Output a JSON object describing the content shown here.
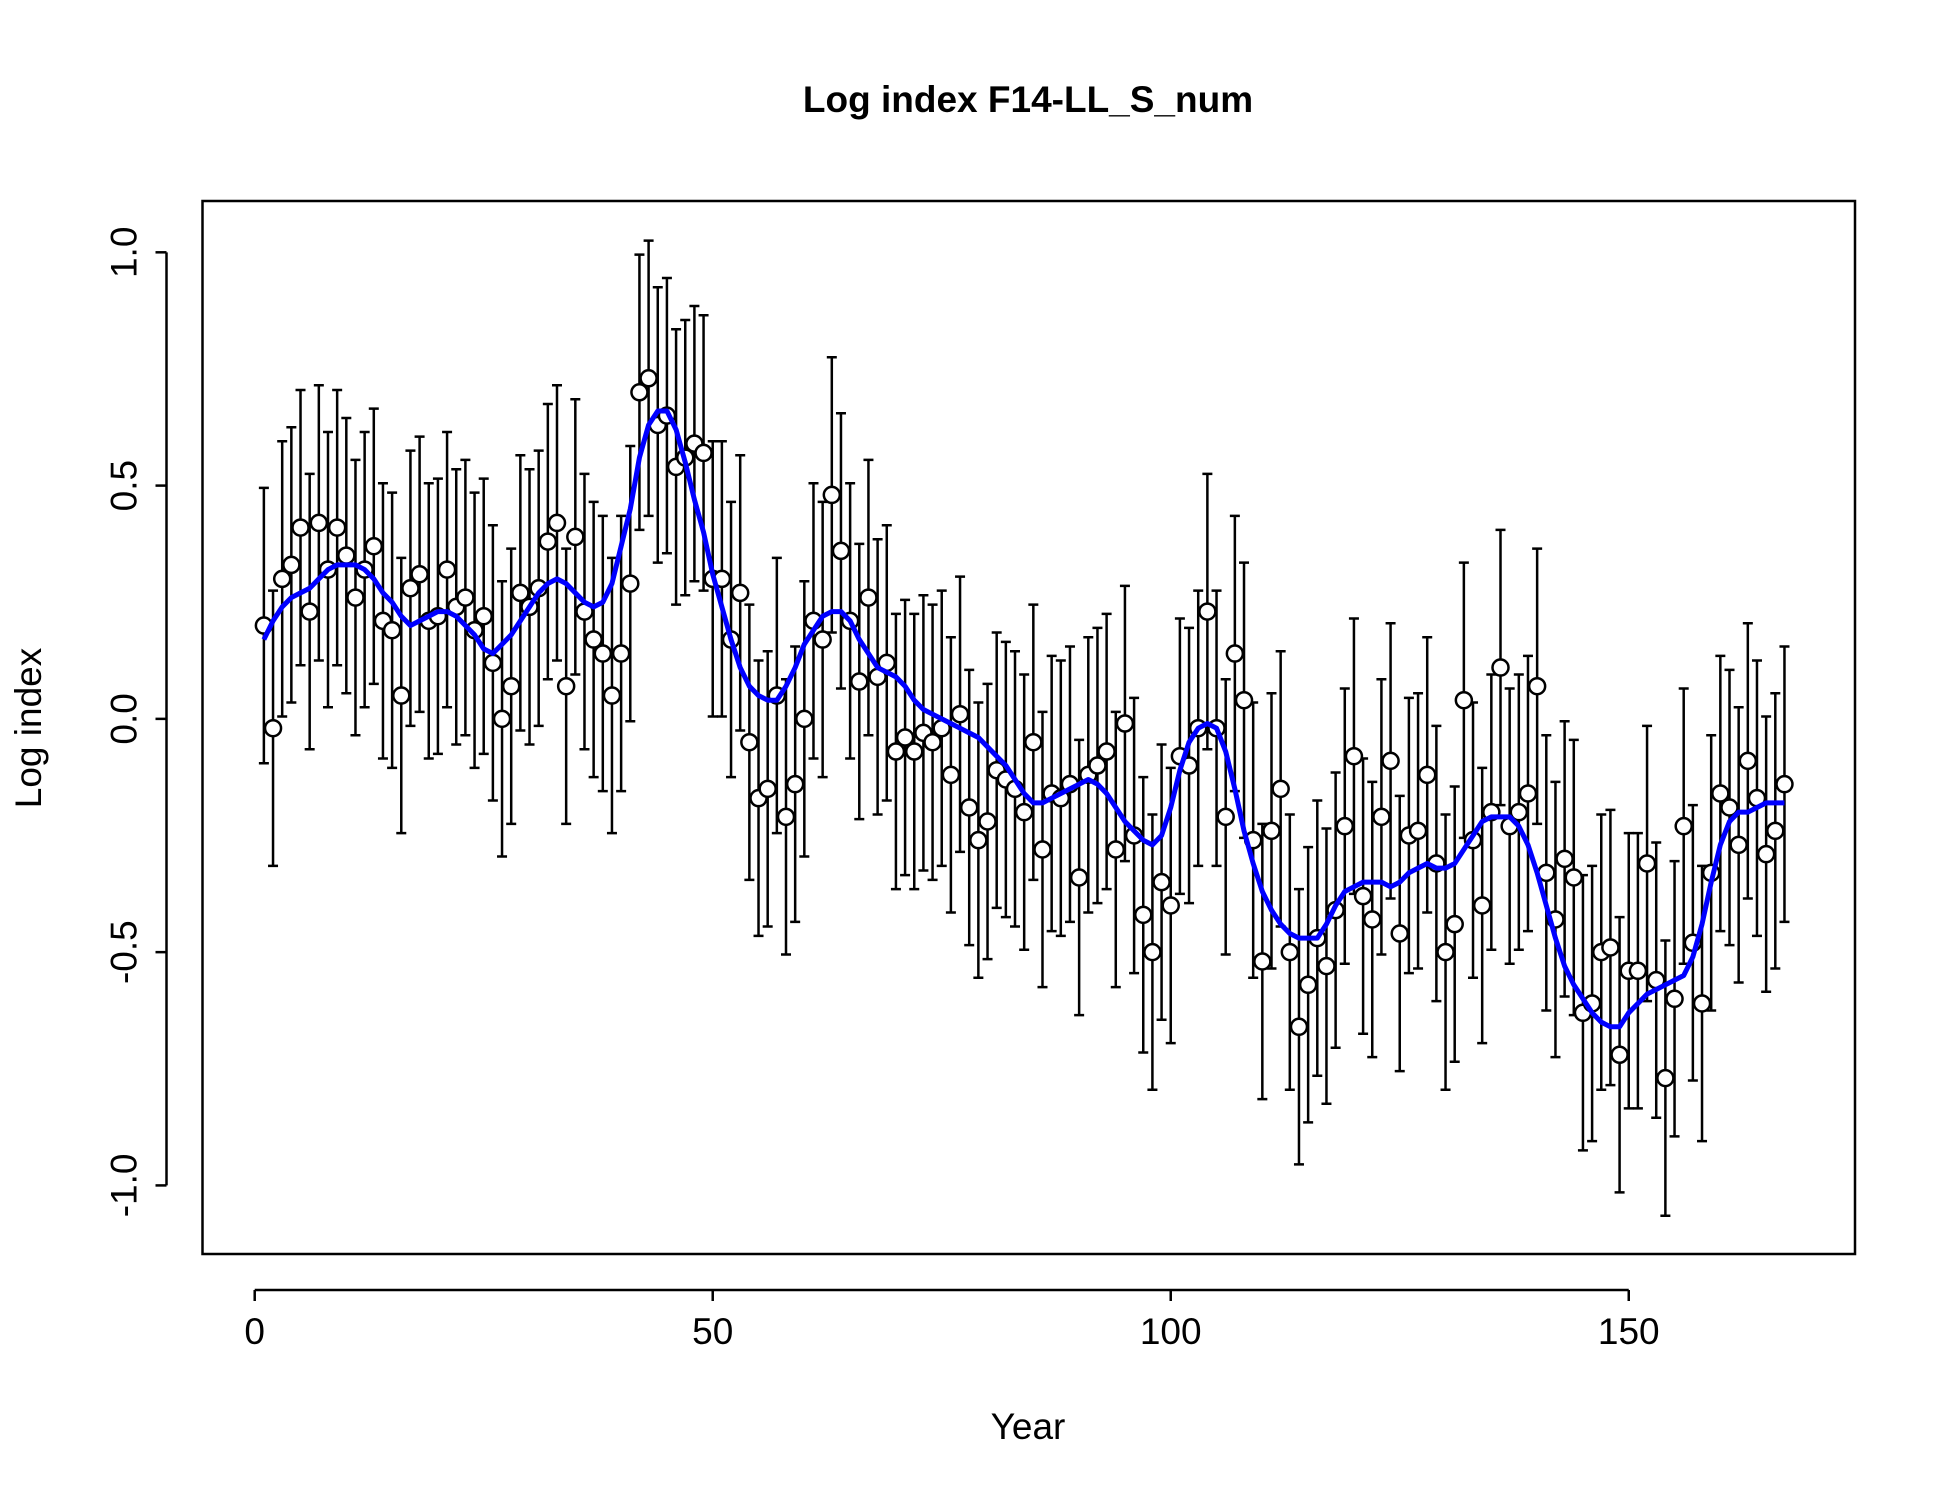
{
  "chart_data": {
    "type": "scatter",
    "title": "Log index F14-LL_S_num",
    "xlabel": "Year",
    "ylabel": "Log index",
    "xlim": [
      -5.7,
      174.7
    ],
    "ylim": [
      -1.147,
      1.11
    ],
    "xticks": [
      0,
      50,
      100,
      150
    ],
    "yticks": [
      {
        "value": -1,
        "label": "-1.0"
      },
      {
        "value": -0.5,
        "label": "-0.5"
      },
      {
        "value": 0,
        "label": "0.0"
      },
      {
        "value": 0.5,
        "label": "0.5"
      },
      {
        "value": 1,
        "label": "1.0"
      }
    ],
    "x": [
      1,
      2,
      3,
      4,
      5,
      6,
      7,
      8,
      9,
      10,
      11,
      12,
      13,
      14,
      15,
      16,
      17,
      18,
      19,
      20,
      21,
      22,
      23,
      24,
      25,
      26,
      27,
      28,
      29,
      30,
      31,
      32,
      33,
      34,
      35,
      36,
      37,
      38,
      39,
      40,
      41,
      42,
      43,
      44,
      45,
      46,
      47,
      48,
      49,
      50,
      51,
      52,
      53,
      54,
      55,
      56,
      57,
      58,
      59,
      60,
      61,
      62,
      63,
      64,
      65,
      66,
      67,
      68,
      69,
      70,
      71,
      72,
      73,
      74,
      75,
      76,
      77,
      78,
      79,
      80,
      81,
      82,
      83,
      84,
      85,
      86,
      87,
      88,
      89,
      90,
      91,
      92,
      93,
      94,
      95,
      96,
      97,
      98,
      99,
      100,
      101,
      102,
      103,
      104,
      105,
      106,
      107,
      108,
      109,
      110,
      111,
      112,
      113,
      114,
      115,
      116,
      117,
      118,
      119,
      120,
      121,
      122,
      123,
      124,
      125,
      126,
      127,
      128,
      129,
      130,
      131,
      132,
      133,
      134,
      135,
      136,
      137,
      138,
      139,
      140,
      141,
      142,
      143,
      144,
      145,
      146,
      147,
      148,
      149,
      150,
      151,
      152,
      153,
      154,
      155,
      156,
      157,
      158,
      159,
      160,
      161,
      162,
      163,
      164,
      165,
      166,
      167
    ],
    "series": [
      {
        "type": "points",
        "color": "#000000",
        "error": 0.295,
        "values": [
          0.2,
          -0.02,
          0.3,
          0.33,
          0.41,
          0.23,
          0.42,
          0.32,
          0.41,
          0.35,
          0.26,
          0.32,
          0.37,
          0.21,
          0.19,
          0.05,
          0.28,
          0.31,
          0.21,
          0.22,
          0.32,
          0.24,
          0.26,
          0.19,
          0.22,
          0.12,
          0.0,
          0.07,
          0.27,
          0.24,
          0.28,
          0.38,
          0.42,
          0.07,
          0.39,
          0.23,
          0.17,
          0.14,
          0.05,
          0.14,
          0.29,
          0.7,
          0.73,
          0.63,
          0.65,
          0.54,
          0.56,
          0.59,
          0.57,
          0.3,
          0.3,
          0.17,
          0.27,
          -0.05,
          -0.17,
          -0.15,
          0.05,
          -0.21,
          -0.14,
          0.0,
          0.21,
          0.17,
          0.48,
          0.36,
          0.21,
          0.08,
          0.26,
          0.09,
          0.12,
          -0.07,
          -0.04,
          -0.07,
          -0.03,
          -0.05,
          -0.02,
          -0.12,
          0.01,
          -0.19,
          -0.26,
          -0.22,
          -0.11,
          -0.13,
          -0.15,
          -0.2,
          -0.05,
          -0.28,
          -0.16,
          -0.17,
          -0.14,
          -0.34,
          -0.12,
          -0.1,
          -0.07,
          -0.28,
          -0.01,
          -0.25,
          -0.42,
          -0.5,
          -0.35,
          -0.4,
          -0.08,
          -0.1,
          -0.02,
          0.23,
          -0.02,
          -0.21,
          0.14,
          0.04,
          -0.26,
          -0.52,
          -0.24,
          -0.15,
          -0.5,
          -0.66,
          -0.57,
          -0.47,
          -0.53,
          -0.41,
          -0.23,
          -0.08,
          -0.38,
          -0.43,
          -0.21,
          -0.09,
          -0.46,
          -0.25,
          -0.24,
          -0.12,
          -0.31,
          -0.5,
          -0.44,
          0.04,
          -0.26,
          -0.4,
          -0.2,
          0.11,
          -0.23,
          -0.2,
          -0.16,
          0.07,
          -0.33,
          -0.43,
          -0.3,
          -0.34,
          -0.63,
          -0.61,
          -0.5,
          -0.49,
          -0.72,
          -0.54,
          -0.54,
          -0.31,
          -0.56,
          -0.77,
          -0.6,
          -0.23,
          -0.48,
          -0.61,
          -0.33,
          -0.16,
          -0.19,
          -0.27,
          -0.09,
          -0.17,
          -0.29,
          -0.24,
          -0.14
        ]
      },
      {
        "type": "line",
        "color": "#0000ff",
        "values": [
          0.17,
          0.21,
          0.24,
          0.26,
          0.27,
          0.28,
          0.3,
          0.32,
          0.33,
          0.33,
          0.33,
          0.32,
          0.3,
          0.27,
          0.25,
          0.22,
          0.2,
          0.21,
          0.22,
          0.23,
          0.23,
          0.22,
          0.2,
          0.18,
          0.15,
          0.14,
          0.16,
          0.18,
          0.21,
          0.24,
          0.27,
          0.29,
          0.3,
          0.29,
          0.27,
          0.25,
          0.24,
          0.25,
          0.29,
          0.37,
          0.45,
          0.56,
          0.63,
          0.66,
          0.66,
          0.62,
          0.55,
          0.47,
          0.4,
          0.31,
          0.24,
          0.17,
          0.11,
          0.07,
          0.05,
          0.04,
          0.04,
          0.07,
          0.11,
          0.16,
          0.19,
          0.22,
          0.23,
          0.23,
          0.21,
          0.17,
          0.14,
          0.11,
          0.1,
          0.09,
          0.07,
          0.04,
          0.02,
          0.01,
          0.0,
          -0.01,
          -0.02,
          -0.03,
          -0.04,
          -0.06,
          -0.08,
          -0.1,
          -0.13,
          -0.16,
          -0.18,
          -0.18,
          -0.17,
          -0.16,
          -0.15,
          -0.14,
          -0.13,
          -0.14,
          -0.16,
          -0.19,
          -0.22,
          -0.24,
          -0.26,
          -0.27,
          -0.25,
          -0.19,
          -0.11,
          -0.05,
          -0.02,
          -0.01,
          -0.02,
          -0.07,
          -0.15,
          -0.24,
          -0.31,
          -0.37,
          -0.41,
          -0.44,
          -0.46,
          -0.47,
          -0.47,
          -0.47,
          -0.44,
          -0.4,
          -0.37,
          -0.36,
          -0.35,
          -0.35,
          -0.35,
          -0.36,
          -0.35,
          -0.33,
          -0.32,
          -0.31,
          -0.32,
          -0.32,
          -0.31,
          -0.28,
          -0.25,
          -0.22,
          -0.21,
          -0.21,
          -0.21,
          -0.23,
          -0.27,
          -0.33,
          -0.4,
          -0.47,
          -0.53,
          -0.57,
          -0.6,
          -0.63,
          -0.65,
          -0.66,
          -0.66,
          -0.63,
          -0.61,
          -0.59,
          -0.58,
          -0.57,
          -0.56,
          -0.55,
          -0.51,
          -0.44,
          -0.35,
          -0.27,
          -0.22,
          -0.2,
          -0.2,
          -0.19,
          -0.18,
          -0.18,
          -0.18
        ]
      }
    ]
  }
}
